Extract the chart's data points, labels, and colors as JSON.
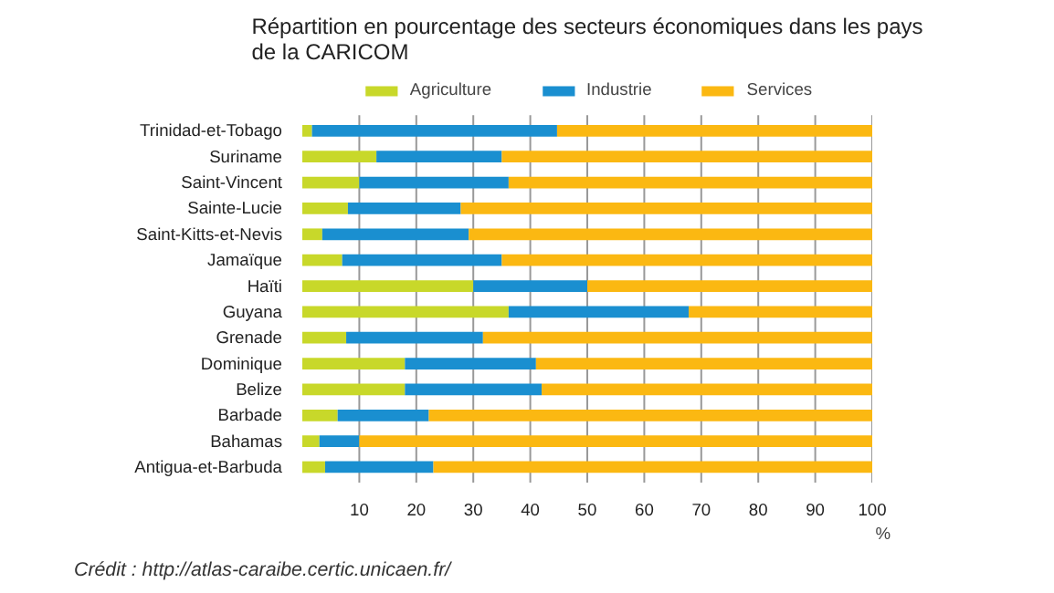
{
  "chart_data": {
    "type": "bar",
    "orientation": "horizontal",
    "stacked": true,
    "title": "Répartition en pourcentage des secteurs économiques dans les pays de la CARICOM",
    "xlabel": "%",
    "categories": [
      "Trinidad-et-Tobago",
      "Suriname",
      "Saint-Vincent",
      "Sainte-Lucie",
      "Saint-Kitts-et-Nevis",
      "Jamaïque",
      "Haïti",
      "Guyana",
      "Grenade",
      "Dominique",
      "Belize",
      "Barbade",
      "Bahamas",
      "Antigua-et-Barbuda"
    ],
    "series": [
      {
        "name": "Agriculture",
        "color": "#c8d82a",
        "values": [
          1.7,
          13,
          10,
          8,
          3.5,
          7,
          30,
          36.2,
          7.7,
          18,
          18,
          6.2,
          3,
          4
        ]
      },
      {
        "name": "Industrie",
        "color": "#1a8fd0",
        "values": [
          43,
          22,
          26.2,
          19.8,
          25.7,
          28,
          20,
          31.6,
          24,
          23,
          24,
          16,
          7,
          19
        ]
      },
      {
        "name": "Services",
        "color": "#fbb812",
        "values": [
          55.3,
          65,
          63.8,
          72.2,
          70.8,
          65,
          50,
          32.2,
          68.3,
          59,
          58,
          77.8,
          90,
          77
        ]
      }
    ],
    "xlim": [
      0,
      100
    ],
    "xticks": [
      10,
      20,
      30,
      40,
      50,
      60,
      70,
      80,
      90,
      100
    ],
    "grid": "x",
    "legend": "top",
    "annotations": [
      "Crédit : http://atlas-caraibe.certic.unicaen.fr/"
    ]
  }
}
